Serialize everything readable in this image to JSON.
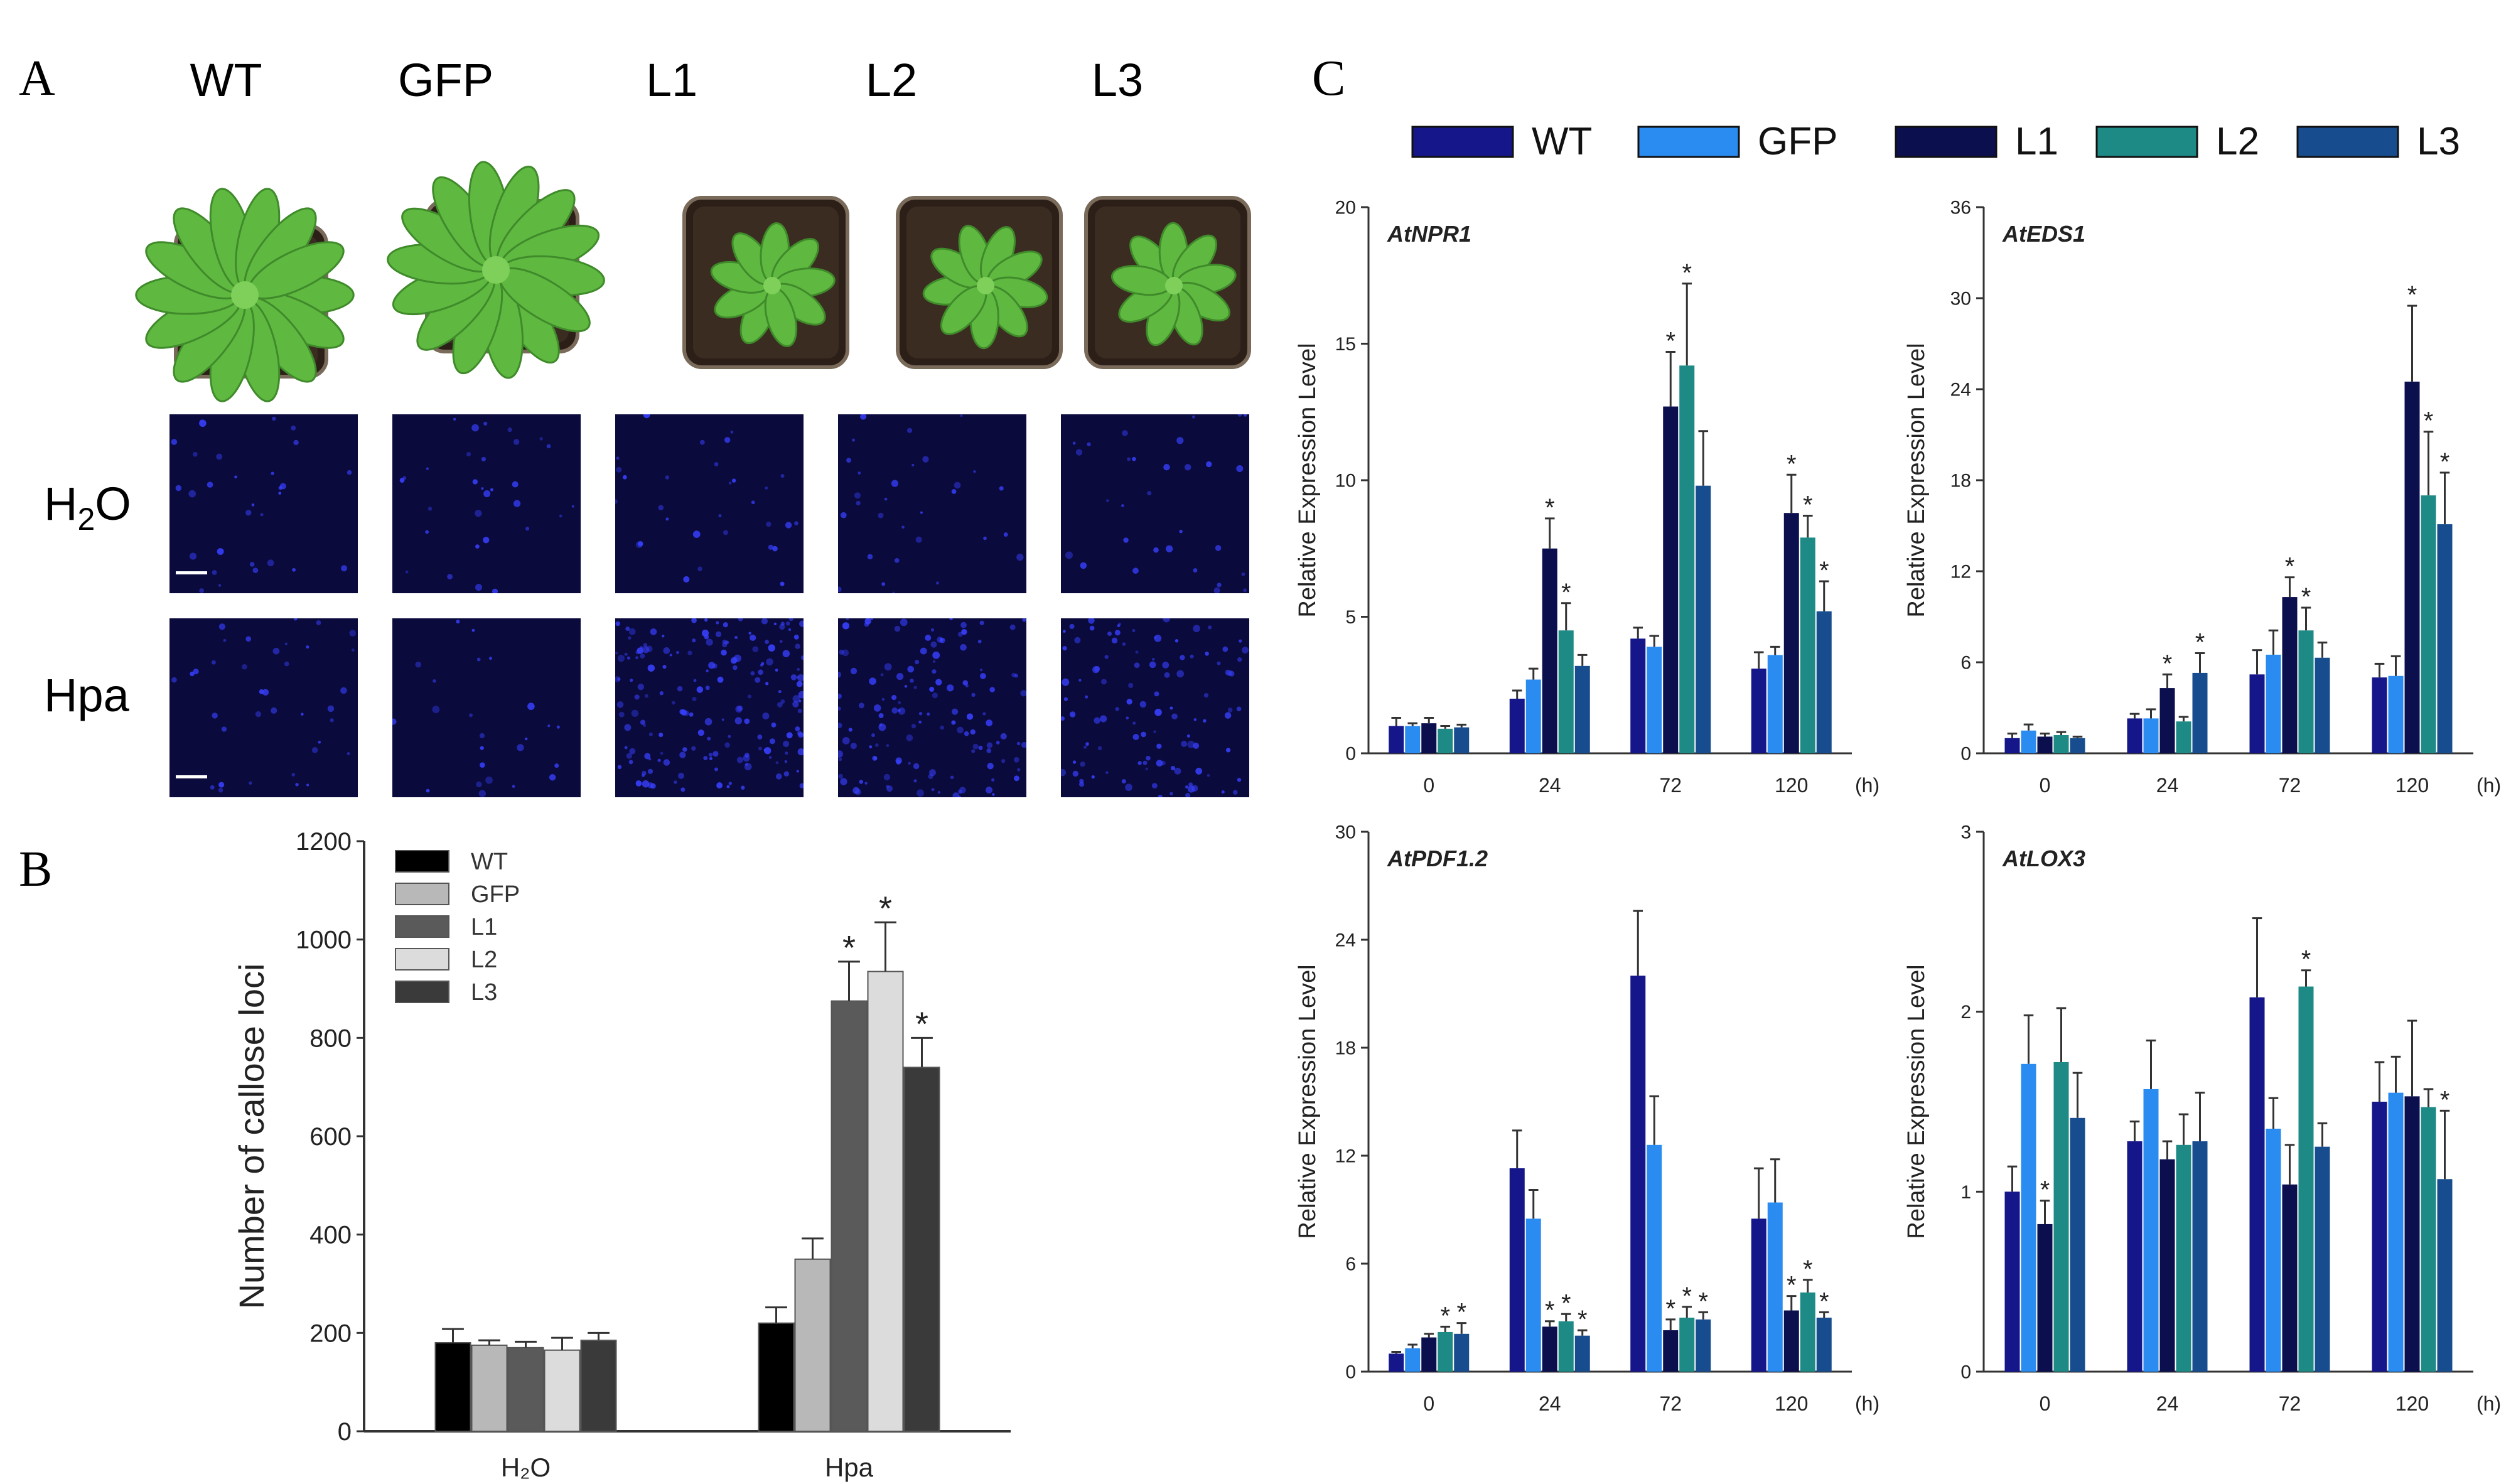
{
  "panels": {
    "a_letter": "A",
    "b_letter": "B",
    "c_letter": "C"
  },
  "panel_a": {
    "genotypes": [
      "WT",
      "GFP",
      "L1",
      "L2",
      "L3"
    ],
    "row_h2o_main": "H",
    "row_h2o_sub": "2",
    "row_h2o_tail": "O",
    "row_hpa": "Hpa",
    "plant_sizes": [
      "large",
      "large",
      "small",
      "small",
      "small"
    ],
    "callose_density": [
      0.06,
      0.04,
      0.3,
      0.22,
      0.18
    ]
  },
  "colors": {
    "b": [
      "#000000",
      "#b8b8b8",
      "#5a5a5a",
      "#dcdcdc",
      "#3a3a3a"
    ],
    "c": [
      "#14168a",
      "#2a8cf0",
      "#0b0f4e",
      "#1e8a86",
      "#174d8e"
    ],
    "leaf": "#5fb840",
    "soil": "#3b2c22",
    "callose": "#3840ff"
  },
  "chart_data": [
    {
      "id": "B",
      "type": "bar",
      "ylabel": "Number of callose loci",
      "categories": [
        "H₂O",
        "Hpa"
      ],
      "ylim": [
        0,
        1200
      ],
      "yticks": [
        0,
        200,
        400,
        600,
        800,
        1000,
        1200
      ],
      "series": [
        {
          "name": "WT",
          "values": [
            180,
            220
          ],
          "errors": [
            28,
            32
          ],
          "sig": [
            false,
            false
          ]
        },
        {
          "name": "GFP",
          "values": [
            175,
            350
          ],
          "errors": [
            10,
            42
          ],
          "sig": [
            false,
            false
          ]
        },
        {
          "name": "L1",
          "values": [
            170,
            875
          ],
          "errors": [
            12,
            80
          ],
          "sig": [
            false,
            true
          ]
        },
        {
          "name": "L2",
          "values": [
            165,
            935
          ],
          "errors": [
            25,
            100
          ],
          "sig": [
            false,
            true
          ]
        },
        {
          "name": "L3",
          "values": [
            185,
            740
          ],
          "errors": [
            15,
            60
          ],
          "sig": [
            false,
            true
          ]
        }
      ],
      "legend": "top-left"
    },
    {
      "id": "C1",
      "type": "bar",
      "title": "AtNPR1",
      "ylabel": "Relative Expression Level",
      "categories": [
        "0",
        "24",
        "72",
        "120"
      ],
      "unit": "(h)",
      "ylim": [
        0,
        20
      ],
      "yticks": [
        0,
        5,
        10,
        15,
        20
      ],
      "series": [
        {
          "name": "WT",
          "values": [
            1.0,
            2.0,
            4.2,
            3.1
          ],
          "errors": [
            0.3,
            0.3,
            0.4,
            0.6
          ],
          "sig": [
            false,
            false,
            false,
            false
          ]
        },
        {
          "name": "GFP",
          "values": [
            1.0,
            2.7,
            3.9,
            3.6
          ],
          "errors": [
            0.1,
            0.4,
            0.4,
            0.3
          ],
          "sig": [
            false,
            false,
            false,
            false
          ]
        },
        {
          "name": "L1",
          "values": [
            1.1,
            7.5,
            12.7,
            8.8
          ],
          "errors": [
            0.2,
            1.1,
            2.0,
            1.4
          ],
          "sig": [
            false,
            true,
            true,
            true
          ]
        },
        {
          "name": "L2",
          "values": [
            0.9,
            4.5,
            14.2,
            7.9
          ],
          "errors": [
            0.1,
            1.0,
            3.0,
            0.8
          ],
          "sig": [
            false,
            true,
            true,
            true
          ]
        },
        {
          "name": "L3",
          "values": [
            0.95,
            3.2,
            9.8,
            5.2
          ],
          "errors": [
            0.1,
            0.4,
            2.0,
            1.1
          ],
          "sig": [
            false,
            false,
            false,
            true
          ]
        }
      ]
    },
    {
      "id": "C2",
      "type": "bar",
      "title": "AtEDS1",
      "ylabel": "Relative Expression Level",
      "categories": [
        "0",
        "24",
        "72",
        "120"
      ],
      "unit": "(h)",
      "ylim": [
        0,
        36
      ],
      "yticks": [
        0,
        6,
        12,
        18,
        24,
        30,
        36
      ],
      "series": [
        {
          "name": "WT",
          "values": [
            1.0,
            2.3,
            5.2,
            5.0
          ],
          "errors": [
            0.3,
            0.3,
            1.6,
            0.9
          ],
          "sig": [
            false,
            false,
            false,
            false
          ]
        },
        {
          "name": "GFP",
          "values": [
            1.5,
            2.3,
            6.5,
            5.1
          ],
          "errors": [
            0.4,
            0.6,
            1.6,
            1.3
          ],
          "sig": [
            false,
            false,
            false,
            false
          ]
        },
        {
          "name": "L1",
          "values": [
            1.1,
            4.3,
            10.3,
            24.5
          ],
          "errors": [
            0.2,
            0.9,
            1.3,
            5.0
          ],
          "sig": [
            false,
            true,
            true,
            true
          ]
        },
        {
          "name": "L2",
          "values": [
            1.2,
            2.1,
            8.1,
            17.0
          ],
          "errors": [
            0.2,
            0.3,
            1.5,
            4.2
          ],
          "sig": [
            false,
            false,
            true,
            true
          ]
        },
        {
          "name": "L3",
          "values": [
            1.0,
            5.3,
            6.3,
            15.1
          ],
          "errors": [
            0.1,
            1.3,
            1.0,
            3.4
          ],
          "sig": [
            false,
            true,
            false,
            true
          ]
        }
      ]
    },
    {
      "id": "C3",
      "type": "bar",
      "title": "AtPDF1.2",
      "ylabel": "Relative Expression Level",
      "categories": [
        "0",
        "24",
        "72",
        "120"
      ],
      "unit": "(h)",
      "ylim": [
        0,
        30
      ],
      "yticks": [
        0,
        6,
        12,
        18,
        24,
        30
      ],
      "series": [
        {
          "name": "WT",
          "values": [
            1.0,
            11.3,
            22.0,
            8.5
          ],
          "errors": [
            0.1,
            2.1,
            3.6,
            2.8
          ],
          "sig": [
            false,
            false,
            false,
            false
          ]
        },
        {
          "name": "GFP",
          "values": [
            1.3,
            8.5,
            12.6,
            9.4
          ],
          "errors": [
            0.2,
            1.6,
            2.7,
            2.4
          ],
          "sig": [
            false,
            false,
            false,
            false
          ]
        },
        {
          "name": "L1",
          "values": [
            1.9,
            2.5,
            2.3,
            3.4
          ],
          "errors": [
            0.2,
            0.3,
            0.6,
            0.8
          ],
          "sig": [
            false,
            true,
            true,
            true
          ]
        },
        {
          "name": "L2",
          "values": [
            2.2,
            2.8,
            3.0,
            4.4
          ],
          "errors": [
            0.3,
            0.4,
            0.6,
            0.7
          ],
          "sig": [
            true,
            true,
            true,
            true
          ]
        },
        {
          "name": "L3",
          "values": [
            2.1,
            2.0,
            2.9,
            3.0
          ],
          "errors": [
            0.6,
            0.3,
            0.4,
            0.3
          ],
          "sig": [
            true,
            true,
            true,
            true
          ]
        }
      ]
    },
    {
      "id": "C4",
      "type": "bar",
      "title": "AtLOX3",
      "ylabel": "Relative Expression Level",
      "categories": [
        "0",
        "24",
        "72",
        "120"
      ],
      "unit": "(h)",
      "ylim": [
        0,
        3
      ],
      "yticks": [
        0,
        1,
        2,
        3
      ],
      "series": [
        {
          "name": "WT",
          "values": [
            1.0,
            1.28,
            2.08,
            1.5
          ],
          "errors": [
            0.14,
            0.11,
            0.44,
            0.22
          ],
          "sig": [
            false,
            false,
            false,
            false
          ]
        },
        {
          "name": "GFP",
          "values": [
            1.71,
            1.57,
            1.35,
            1.55
          ],
          "errors": [
            0.27,
            0.27,
            0.17,
            0.2
          ],
          "sig": [
            false,
            false,
            false,
            false
          ]
        },
        {
          "name": "L1",
          "values": [
            0.82,
            1.18,
            1.04,
            1.53
          ],
          "errors": [
            0.13,
            0.1,
            0.22,
            0.42
          ],
          "sig": [
            true,
            false,
            false,
            false
          ]
        },
        {
          "name": "L2",
          "values": [
            1.72,
            1.26,
            2.14,
            1.47
          ],
          "errors": [
            0.3,
            0.17,
            0.09,
            0.1
          ],
          "sig": [
            false,
            false,
            true,
            false
          ]
        },
        {
          "name": "L3",
          "values": [
            1.41,
            1.28,
            1.25,
            1.07
          ],
          "errors": [
            0.25,
            0.27,
            0.13,
            0.38
          ],
          "sig": [
            false,
            false,
            false,
            true
          ]
        }
      ]
    }
  ]
}
